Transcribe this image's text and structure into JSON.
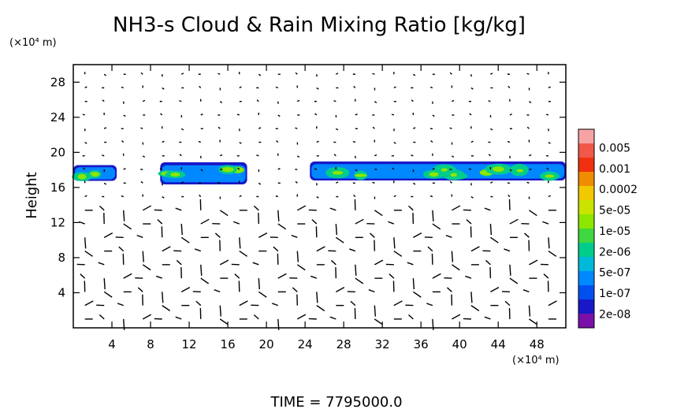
{
  "title": "NH3-s Cloud & Rain Mixing Ratio [kg/kg]",
  "time_label": "TIME  =  7795000.0",
  "y_unit": "(×10⁴ m)",
  "x_unit": "(×10⁴ m)",
  "chart_data": {
    "type": "heatmap",
    "title": "NH3-s Cloud & Rain Mixing Ratio [kg/kg]",
    "xlabel": "",
    "ylabel": "Height",
    "x_unit": "(×10⁴ m)",
    "y_unit": "(×10⁴ m)",
    "xlim": [
      0,
      51
    ],
    "ylim": [
      0,
      30
    ],
    "x_ticks": [
      4,
      8,
      12,
      16,
      20,
      24,
      28,
      32,
      36,
      40,
      44,
      48
    ],
    "y_ticks": [
      4,
      8,
      12,
      16,
      20,
      24,
      28
    ],
    "colorbar": {
      "labels": [
        "0.005",
        "0.001",
        "0.0002",
        "5e-05",
        "1e-05",
        "2e-06",
        "5e-07",
        "1e-07",
        "2e-08"
      ],
      "colors": [
        "#f7a3a3",
        "#f0584a",
        "#f03010",
        "#f08c00",
        "#f2c800",
        "#c8e400",
        "#8ce600",
        "#40d840",
        "#00cc8c",
        "#00b8d8",
        "#0088ff",
        "#0050f0",
        "#1818c8",
        "#7a10a8"
      ]
    },
    "cloud_layers": [
      {
        "x": [
          0,
          4.5
        ],
        "y": [
          16.5,
          19.0
        ]
      },
      {
        "x": [
          9.0,
          18.0
        ],
        "y": [
          16.0,
          19.5
        ]
      },
      {
        "x": [
          24.5,
          51.0
        ],
        "y": [
          16.5,
          19.5
        ]
      }
    ],
    "overlay": "wind vector field"
  }
}
